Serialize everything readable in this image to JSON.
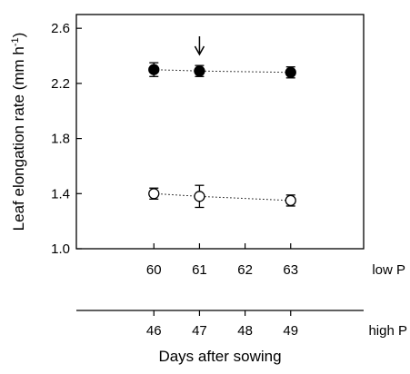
{
  "chart_data": {
    "type": "scatter",
    "ylabel_main": "Leaf elongation rate (mm h",
    "ylabel_sup": "-1",
    "ylabel_close": ")",
    "ylim": [
      1.0,
      2.7
    ],
    "yticks": [
      1.0,
      1.4,
      1.8,
      2.2,
      2.6
    ],
    "ytick_labels": [
      "1.0",
      "1.4",
      "1.8",
      "2.2",
      "2.6"
    ],
    "x_axis_top": {
      "ticks": [
        60,
        61,
        62,
        63
      ],
      "tick_labels": [
        "60",
        "61",
        "62",
        "63"
      ],
      "label": "low P"
    },
    "x_axis_bottom": {
      "ticks": [
        46,
        47,
        48,
        49
      ],
      "tick_labels": [
        "46",
        "47",
        "48",
        "49"
      ],
      "label": "high P"
    },
    "xlabel": "Days after sowing",
    "series": [
      {
        "marker": "filled",
        "points": [
          {
            "x": 60,
            "y": 2.3,
            "err": 0.05
          },
          {
            "x": 61,
            "y": 2.29,
            "err": 0.04
          },
          {
            "x": 63,
            "y": 2.28,
            "err": 0.04
          }
        ]
      },
      {
        "marker": "open",
        "points": [
          {
            "x": 60,
            "y": 1.4,
            "err": 0.04
          },
          {
            "x": 61,
            "y": 1.38,
            "err": 0.08
          },
          {
            "x": 63,
            "y": 1.35,
            "err": 0.04
          }
        ]
      }
    ],
    "annotation": {
      "type": "arrow-down",
      "x": 61
    }
  }
}
